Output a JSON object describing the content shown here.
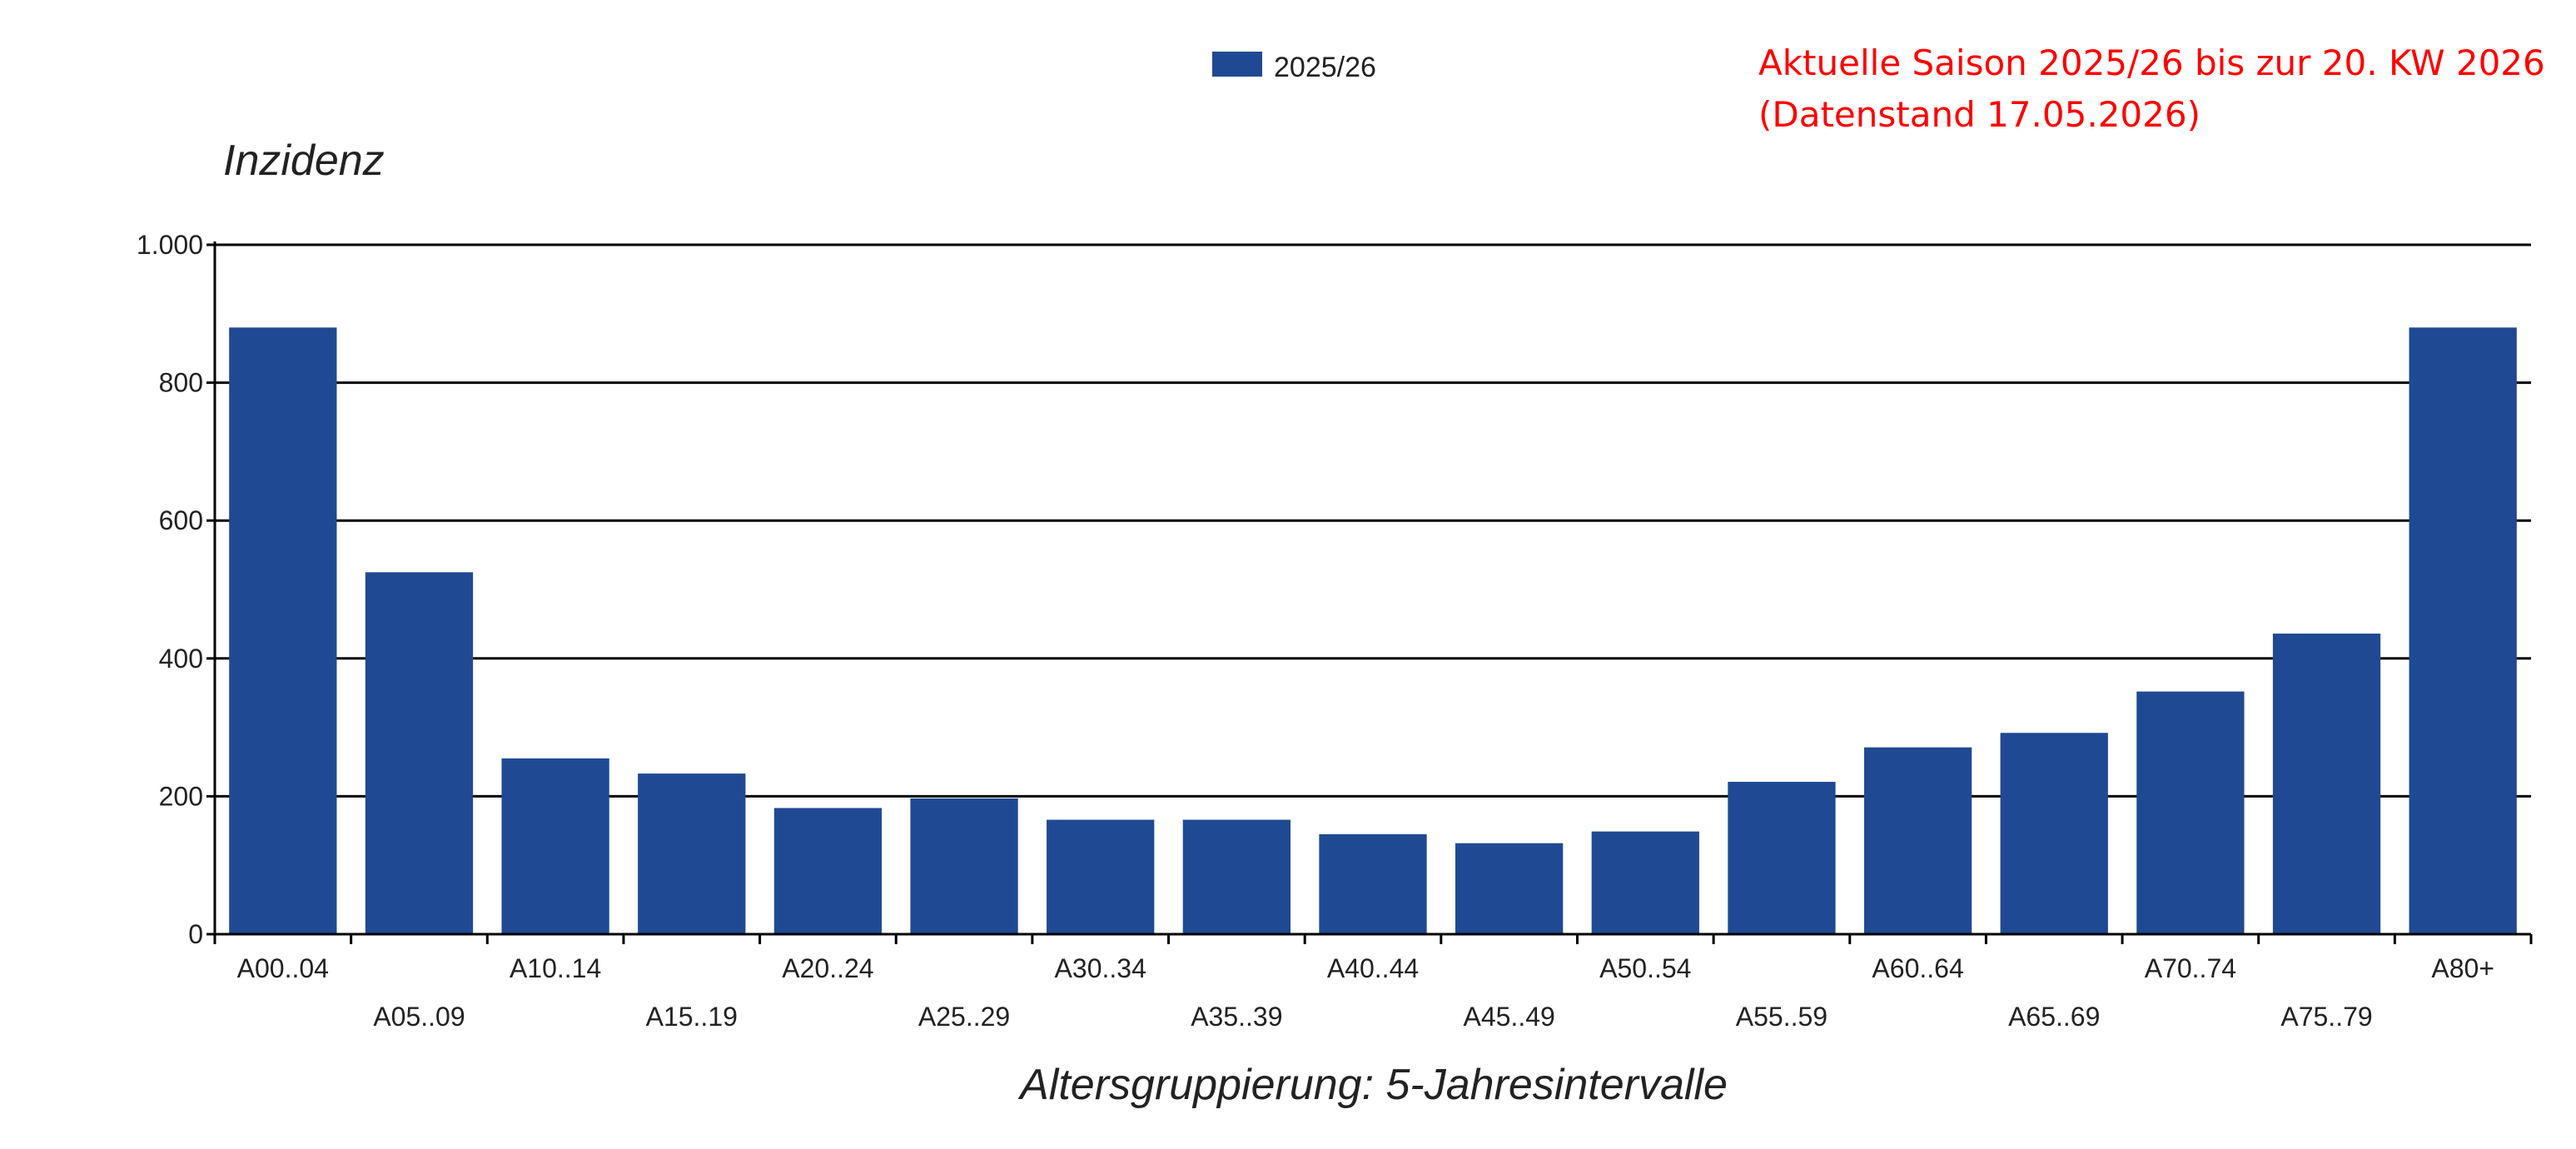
{
  "chart_data": {
    "type": "bar",
    "ylabel": "Inzidenz",
    "xlabel": "Altersgruppierung: 5-Jahresintervalle",
    "annotation_lines": [
      "Aktuelle Saison 2025/26 bis zur 20. KW 2026",
      "(Datenstand 17.05.2026)"
    ],
    "legend": {
      "position": "top-center",
      "entries": [
        "2025/26"
      ]
    },
    "ylim": [
      0,
      1000
    ],
    "yticks": [
      0,
      200,
      400,
      600,
      800,
      1000
    ],
    "ytick_labels": [
      "0",
      "200",
      "400",
      "600",
      "800",
      "1.000"
    ],
    "grid": true,
    "categories": [
      "A00..04",
      "A05..09",
      "A10..14",
      "A15..19",
      "A20..24",
      "A25..29",
      "A30..34",
      "A35..39",
      "A40..44",
      "A45..49",
      "A50..54",
      "A55..59",
      "A60..64",
      "A65..69",
      "A70..74",
      "A75..79",
      "A80+"
    ],
    "series": [
      {
        "name": "2025/26",
        "color": "#1f4a93",
        "values": [
          880,
          525,
          255,
          233,
          183,
          197,
          166,
          166,
          145,
          132,
          149,
          221,
          271,
          292,
          352,
          436,
          880
        ]
      }
    ]
  }
}
